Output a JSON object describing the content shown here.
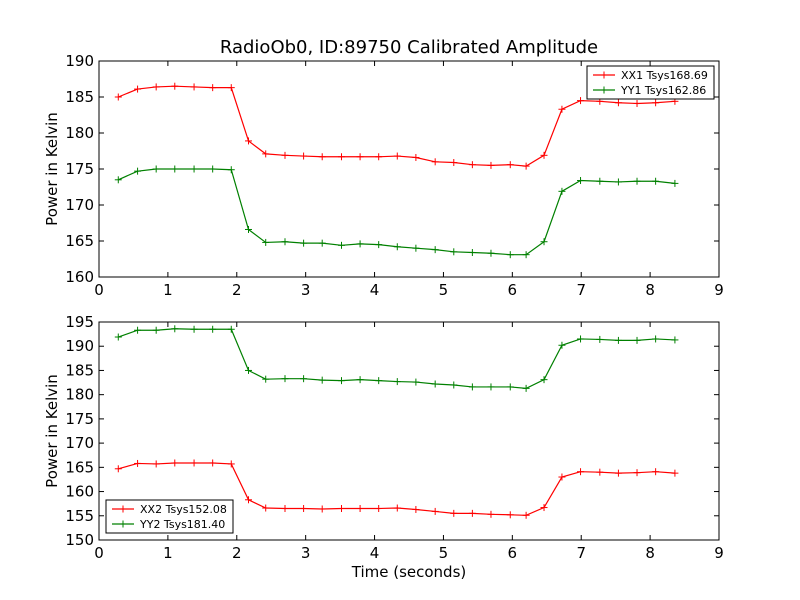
{
  "chart_data": [
    {
      "type": "line",
      "title": "RadioOb0, ID:89750 Calibrated Amplitude",
      "xlabel": "",
      "ylabel": "Power in Kelvin",
      "xlim": [
        0,
        9
      ],
      "ylim": [
        160,
        190
      ],
      "xticks": [
        "0",
        "1",
        "2",
        "3",
        "4",
        "5",
        "6",
        "7",
        "8",
        "9"
      ],
      "yticks": [
        "160",
        "165",
        "170",
        "175",
        "180",
        "185",
        "190"
      ],
      "grid": false,
      "legend_position": "top-right",
      "x": [
        0.28,
        0.56,
        0.83,
        1.1,
        1.38,
        1.65,
        1.92,
        2.17,
        2.42,
        2.7,
        2.97,
        3.24,
        3.52,
        3.79,
        4.06,
        4.33,
        4.6,
        4.88,
        5.15,
        5.42,
        5.69,
        5.97,
        6.2,
        6.46,
        6.72,
        6.99,
        7.27,
        7.54,
        7.81,
        8.08,
        8.36
      ],
      "series": [
        {
          "name": "XX1 Tsys168.69",
          "color": "#ff0000",
          "values": [
            185.0,
            186.1,
            186.4,
            186.5,
            186.4,
            186.3,
            186.3,
            178.9,
            177.1,
            176.9,
            176.8,
            176.7,
            176.7,
            176.7,
            176.7,
            176.8,
            176.6,
            176.0,
            175.9,
            175.6,
            175.5,
            175.6,
            175.4,
            176.9,
            183.3,
            184.5,
            184.4,
            184.2,
            184.1,
            184.2,
            184.4
          ]
        },
        {
          "name": "YY1 Tsys162.86",
          "color": "#008000",
          "values": [
            173.5,
            174.7,
            175.0,
            175.0,
            175.0,
            175.0,
            174.9,
            166.6,
            164.8,
            164.9,
            164.7,
            164.7,
            164.4,
            164.6,
            164.5,
            164.2,
            164.0,
            163.8,
            163.5,
            163.4,
            163.3,
            163.1,
            163.1,
            164.9,
            171.9,
            173.4,
            173.3,
            173.2,
            173.3,
            173.3,
            173.0
          ]
        }
      ]
    },
    {
      "type": "line",
      "title": "",
      "xlabel": "Time (seconds)",
      "ylabel": "Power in Kelvin",
      "xlim": [
        0,
        9
      ],
      "ylim": [
        150,
        195
      ],
      "xticks": [
        "0",
        "1",
        "2",
        "3",
        "4",
        "5",
        "6",
        "7",
        "8",
        "9"
      ],
      "yticks": [
        "150",
        "155",
        "160",
        "165",
        "170",
        "175",
        "180",
        "185",
        "190",
        "195"
      ],
      "grid": false,
      "legend_position": "bottom-left",
      "x": [
        0.28,
        0.56,
        0.83,
        1.1,
        1.38,
        1.65,
        1.92,
        2.17,
        2.42,
        2.7,
        2.97,
        3.24,
        3.52,
        3.79,
        4.06,
        4.33,
        4.6,
        4.88,
        5.15,
        5.42,
        5.69,
        5.97,
        6.2,
        6.46,
        6.72,
        6.99,
        7.27,
        7.54,
        7.81,
        8.08,
        8.36
      ],
      "series": [
        {
          "name": "XX2 Tsys152.08",
          "color": "#ff0000",
          "values": [
            164.7,
            165.8,
            165.7,
            165.9,
            165.9,
            165.9,
            165.7,
            158.3,
            156.6,
            156.5,
            156.5,
            156.4,
            156.5,
            156.5,
            156.5,
            156.6,
            156.3,
            155.9,
            155.5,
            155.5,
            155.3,
            155.2,
            155.1,
            156.7,
            163.0,
            164.1,
            164.0,
            163.8,
            163.9,
            164.1,
            163.8
          ]
        },
        {
          "name": "YY2 Tsys181.40",
          "color": "#008000",
          "values": [
            191.9,
            193.3,
            193.3,
            193.6,
            193.5,
            193.5,
            193.5,
            185.0,
            183.2,
            183.3,
            183.3,
            183.0,
            182.9,
            183.1,
            182.9,
            182.7,
            182.6,
            182.2,
            182.0,
            181.6,
            181.6,
            181.6,
            181.3,
            183.1,
            190.2,
            191.5,
            191.4,
            191.2,
            191.2,
            191.5,
            191.3
          ]
        }
      ]
    }
  ]
}
